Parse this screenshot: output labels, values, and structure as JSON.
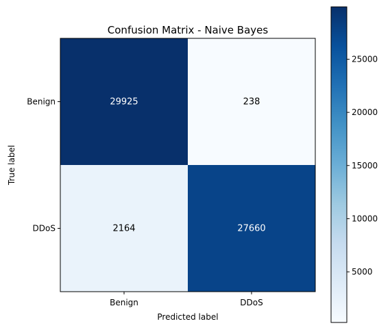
{
  "chart_data": {
    "type": "heatmap",
    "title": "Confusion Matrix - Naive Bayes",
    "xlabel": "Predicted label",
    "ylabel": "True label",
    "x_categories": [
      "Benign",
      "DDoS"
    ],
    "y_categories": [
      "Benign",
      "DDoS"
    ],
    "values": [
      [
        29925,
        238
      ],
      [
        2164,
        27660
      ]
    ],
    "colormap": "Blues",
    "color_range": [
      238,
      29925
    ],
    "colorbar": {
      "ticks": [
        5000,
        10000,
        15000,
        20000,
        25000
      ],
      "tick_labels": [
        "5000",
        "10000",
        "15000",
        "20000",
        "25000"
      ]
    }
  }
}
